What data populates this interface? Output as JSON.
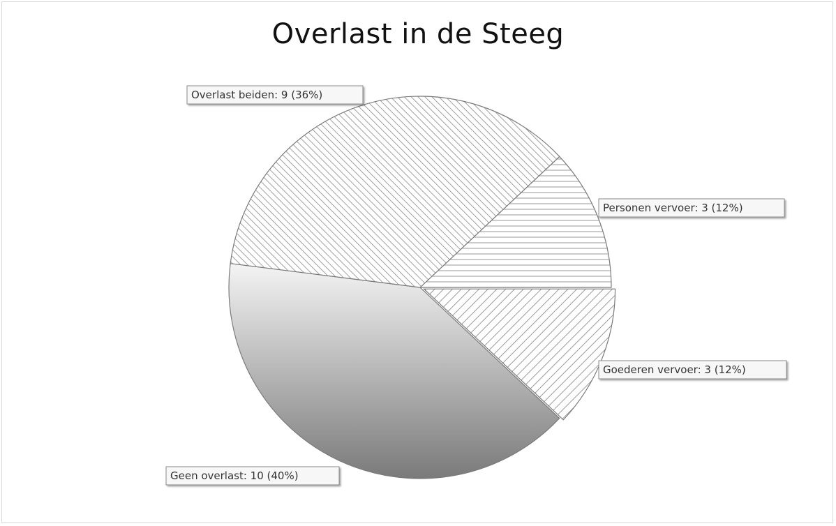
{
  "chart_data": {
    "type": "pie",
    "title": "Overlast in de Steeg",
    "slices": [
      {
        "name": "Personen vervoer",
        "value": 3,
        "percent": 12,
        "label": "Personen vervoer: 3 (12%)",
        "fill": "h-lines"
      },
      {
        "name": "Goederen vervoer",
        "value": 3,
        "percent": 12,
        "label": "Goederen vervoer: 3 (12%)",
        "fill": "diag-light"
      },
      {
        "name": "Geen overlast",
        "value": 10,
        "percent": 40,
        "label": "Geen overlast: 10 (40%)",
        "fill": "gradient"
      },
      {
        "name": "Overlast beiden",
        "value": 9,
        "percent": 36,
        "label": "Overlast beiden: 9 (36%)",
        "fill": "diag-dense"
      }
    ],
    "legend": "none",
    "colors": {
      "stroke": "#7a7a7a",
      "hatch": "#9a9a9a",
      "gradient_top": "#f4f4f4",
      "gradient_bottom": "#7a7a7a"
    }
  }
}
